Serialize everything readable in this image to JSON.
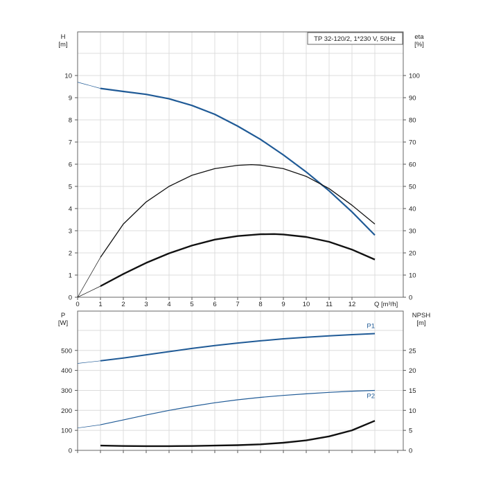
{
  "chart_data": [
    {
      "type": "line",
      "title": "TP 32-120/2, 1*230 V, 50Hz",
      "xlabel": "Q [m³/h]",
      "x_ticks": [
        "0",
        "1",
        "2",
        "3",
        "4",
        "5",
        "6",
        "7",
        "8",
        "9",
        "10",
        "11",
        "12"
      ],
      "xlim": [
        0,
        14
      ],
      "left_axis": {
        "label": "H",
        "unit": "[m]",
        "ylim": [
          0,
          11
        ],
        "ticks": [
          "0",
          "1",
          "2",
          "3",
          "4",
          "5",
          "6",
          "7",
          "8",
          "9",
          "10"
        ]
      },
      "right_axis": {
        "label": "eta",
        "unit": "[%]",
        "ylim": [
          0,
          110
        ],
        "ticks": [
          "0",
          "10",
          "20",
          "30",
          "40",
          "50",
          "60",
          "70",
          "80",
          "90",
          "100"
        ]
      },
      "grid": true,
      "series": [
        {
          "axis": "left",
          "color": "#1f5a96",
          "points": [
            [
              1,
              9.42
            ],
            [
              2,
              9.28
            ],
            [
              3,
              9.15
            ],
            [
              4,
              8.95
            ],
            [
              5,
              8.65
            ],
            [
              6,
              8.25
            ],
            [
              7,
              7.72
            ],
            [
              8,
              7.12
            ],
            [
              9,
              6.42
            ],
            [
              10,
              5.65
            ],
            [
              11,
              4.8
            ],
            [
              12,
              3.85
            ],
            [
              13,
              2.8
            ]
          ],
          "extension": [
            [
              0,
              9.7
            ],
            [
              1,
              9.42
            ]
          ]
        },
        {
          "axis": "right",
          "color": "#111111",
          "points": [
            [
              1,
              18
            ],
            [
              2,
              33
            ],
            [
              3,
              43
            ],
            [
              4,
              50
            ],
            [
              5,
              55
            ],
            [
              6,
              58
            ],
            [
              7,
              59.5
            ],
            [
              7.6,
              59.8
            ],
            [
              8,
              59.6
            ],
            [
              9,
              58
            ],
            [
              10,
              54.5
            ],
            [
              11,
              49
            ],
            [
              12,
              41.5
            ],
            [
              13,
              33
            ]
          ],
          "extension": [
            [
              0,
              0
            ],
            [
              1,
              18
            ]
          ]
        },
        {
          "axis": "left",
          "color": "#111111",
          "points": [
            [
              1,
              0.5
            ],
            [
              2,
              1.05
            ],
            [
              3,
              1.55
            ],
            [
              4,
              1.98
            ],
            [
              5,
              2.33
            ],
            [
              6,
              2.6
            ],
            [
              7,
              2.76
            ],
            [
              8,
              2.84
            ],
            [
              8.6,
              2.85
            ],
            [
              9,
              2.83
            ],
            [
              10,
              2.72
            ],
            [
              11,
              2.5
            ],
            [
              12,
              2.15
            ],
            [
              13,
              1.7
            ]
          ],
          "extension": [
            [
              0,
              0
            ],
            [
              1,
              0.5
            ]
          ]
        }
      ]
    },
    {
      "type": "line",
      "xlim": [
        0,
        14
      ],
      "left_axis": {
        "label": "P",
        "unit": "[W]",
        "ylim": [
          0,
          700
        ],
        "ticks": [
          "0",
          "100",
          "200",
          "300",
          "400",
          "500"
        ]
      },
      "right_axis": {
        "label": "NPSH",
        "unit": "[m]",
        "ylim": [
          0,
          35
        ],
        "ticks": [
          "0",
          "5",
          "10",
          "15",
          "20",
          "25"
        ]
      },
      "grid": true,
      "series": [
        {
          "name": "P1",
          "axis": "left",
          "color": "#1f5a96",
          "points": [
            [
              1,
              448
            ],
            [
              2,
              462
            ],
            [
              3,
              478
            ],
            [
              4,
              494
            ],
            [
              5,
              510
            ],
            [
              6,
              524
            ],
            [
              7,
              537
            ],
            [
              8,
              548
            ],
            [
              9,
              558
            ],
            [
              10,
              566
            ],
            [
              11,
              573
            ],
            [
              12,
              579
            ],
            [
              13,
              584
            ]
          ],
          "extension": [
            [
              0,
              435
            ],
            [
              1,
              448
            ]
          ]
        },
        {
          "name": "P2",
          "axis": "left",
          "color": "#1f5a96",
          "points": [
            [
              1,
              128
            ],
            [
              2,
              152
            ],
            [
              3,
              177
            ],
            [
              4,
              200
            ],
            [
              5,
              220
            ],
            [
              6,
              238
            ],
            [
              7,
              253
            ],
            [
              8,
              265
            ],
            [
              9,
              275
            ],
            [
              10,
              283
            ],
            [
              11,
              290
            ],
            [
              12,
              296
            ],
            [
              13,
              300
            ]
          ],
          "extension": [
            [
              0,
              112
            ],
            [
              1,
              128
            ]
          ]
        },
        {
          "axis": "right",
          "color": "#111111",
          "points": [
            [
              1,
              1.2
            ],
            [
              2,
              1.1
            ],
            [
              3,
              1.05
            ],
            [
              4,
              1.05
            ],
            [
              5,
              1.1
            ],
            [
              6,
              1.2
            ],
            [
              7,
              1.3
            ],
            [
              8,
              1.5
            ],
            [
              9,
              1.9
            ],
            [
              10,
              2.5
            ],
            [
              11,
              3.5
            ],
            [
              12,
              5
            ],
            [
              13,
              7.4
            ]
          ]
        }
      ]
    }
  ]
}
